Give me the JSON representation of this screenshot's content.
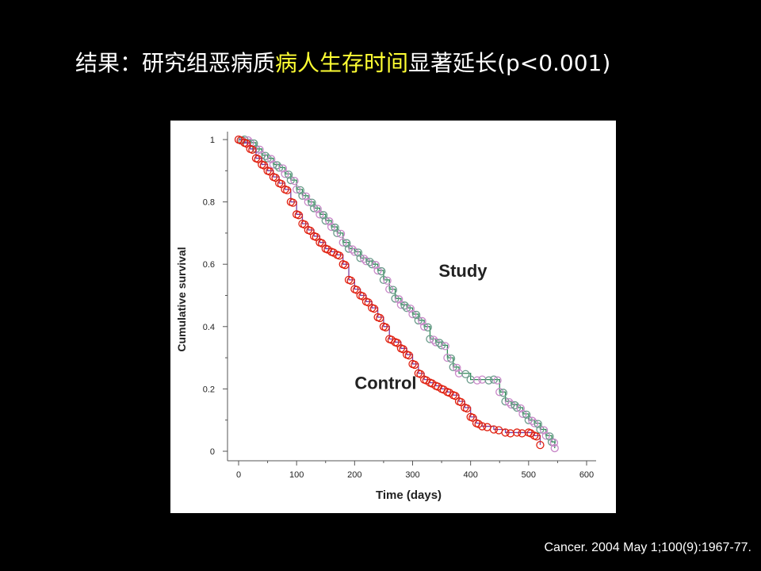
{
  "slide": {
    "title_prefix": "结果：研究组恶病质",
    "title_highlight": "病人生存时间",
    "title_suffix": "显著延长(p<0.001)",
    "citation": "Cancer. 2004 May 1;100(9):1967-77."
  },
  "colors": {
    "background": "#000000",
    "title_text": "#ffffff",
    "title_highlight": "#ffff33",
    "study_line": "#2e8b57",
    "study_marker_a": "#c888c8",
    "study_marker_b": "#6a9a8a",
    "control_line": "#7b3fa0",
    "control_marker": "#e02010"
  },
  "chart_data": {
    "type": "line",
    "xlabel": "Time (days)",
    "ylabel": "Cumulative survival",
    "xlim": [
      0,
      600
    ],
    "ylim": [
      0,
      1
    ],
    "x_ticks": [
      "0",
      "100",
      "200",
      "300",
      "400",
      "500",
      "600"
    ],
    "y_ticks": [
      "0",
      "0.2",
      "0.4",
      "0.6",
      "0.8",
      "1"
    ],
    "series": [
      {
        "name": "Study",
        "x": [
          0,
          10,
          20,
          30,
          40,
          50,
          60,
          70,
          80,
          90,
          100,
          110,
          120,
          130,
          140,
          150,
          160,
          170,
          180,
          190,
          200,
          210,
          220,
          230,
          240,
          250,
          260,
          270,
          280,
          290,
          300,
          310,
          320,
          330,
          340,
          350,
          360,
          370,
          380,
          400,
          420,
          440,
          450,
          460,
          470,
          480,
          490,
          500,
          510,
          520,
          530,
          540,
          545
        ],
        "y": [
          1.0,
          1.0,
          0.99,
          0.97,
          0.95,
          0.94,
          0.92,
          0.91,
          0.89,
          0.87,
          0.84,
          0.82,
          0.8,
          0.78,
          0.76,
          0.74,
          0.72,
          0.7,
          0.67,
          0.65,
          0.64,
          0.62,
          0.61,
          0.6,
          0.58,
          0.55,
          0.52,
          0.49,
          0.47,
          0.46,
          0.44,
          0.42,
          0.4,
          0.36,
          0.35,
          0.34,
          0.3,
          0.27,
          0.25,
          0.23,
          0.23,
          0.23,
          0.19,
          0.16,
          0.15,
          0.14,
          0.12,
          0.1,
          0.09,
          0.07,
          0.05,
          0.03,
          0.01
        ]
      },
      {
        "name": "Control",
        "x": [
          0,
          10,
          20,
          30,
          40,
          50,
          60,
          70,
          80,
          90,
          100,
          110,
          120,
          130,
          140,
          150,
          160,
          170,
          180,
          190,
          200,
          210,
          220,
          230,
          240,
          250,
          260,
          270,
          280,
          290,
          300,
          310,
          320,
          330,
          340,
          350,
          360,
          370,
          380,
          390,
          400,
          410,
          420,
          440,
          460,
          480,
          500,
          510,
          520
        ],
        "y": [
          1.0,
          0.99,
          0.97,
          0.94,
          0.92,
          0.9,
          0.88,
          0.86,
          0.84,
          0.8,
          0.76,
          0.73,
          0.71,
          0.69,
          0.67,
          0.65,
          0.64,
          0.63,
          0.6,
          0.55,
          0.52,
          0.5,
          0.48,
          0.46,
          0.43,
          0.4,
          0.36,
          0.35,
          0.33,
          0.31,
          0.28,
          0.25,
          0.23,
          0.22,
          0.21,
          0.2,
          0.19,
          0.18,
          0.16,
          0.14,
          0.11,
          0.09,
          0.08,
          0.07,
          0.06,
          0.06,
          0.06,
          0.05,
          0.02
        ]
      }
    ],
    "annotations": [
      {
        "text": "Study",
        "x": 345,
        "y": 0.56
      },
      {
        "text": "Control",
        "x": 200,
        "y": 0.2
      }
    ]
  }
}
